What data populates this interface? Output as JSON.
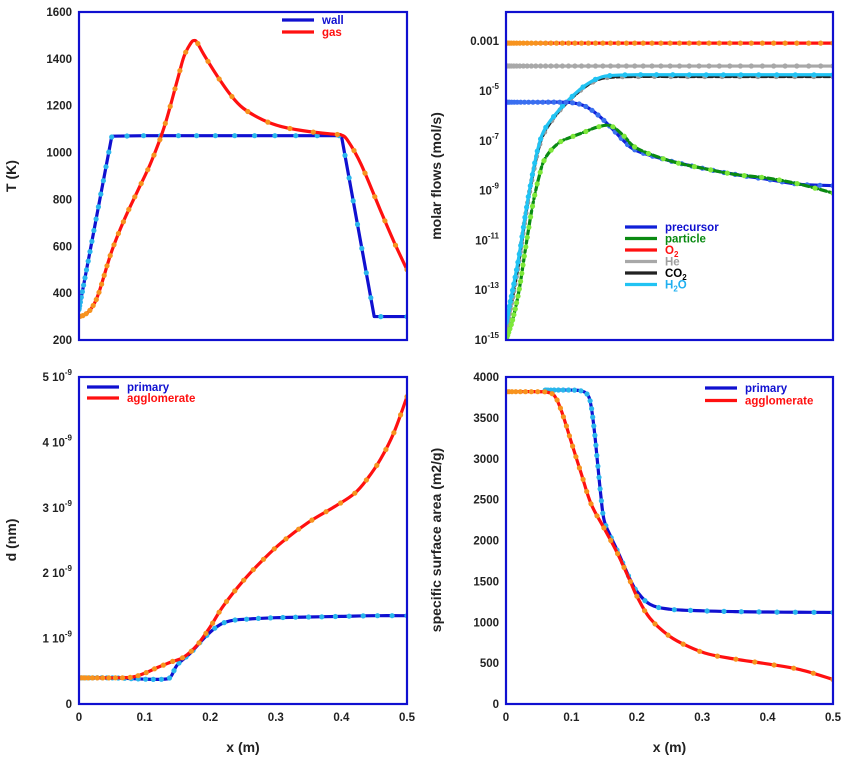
{
  "figure_title": "",
  "colors": {
    "frame": "#1010d0",
    "marker_warm": "#f7931e",
    "marker_cool": "#29b6ec",
    "marker_green": "#7ee83a",
    "marker_gray": "#9a9a9a",
    "marker_blue": "#3a6ff0"
  },
  "chart_data": [
    {
      "id": "temperature",
      "type": "line",
      "title": "",
      "xlabel": "",
      "ylabel": "T (K)",
      "xlim": [
        0,
        0.5
      ],
      "ylim": [
        200,
        1600
      ],
      "yscale": "linear",
      "x_ticks": [],
      "y_ticks": [
        "200",
        "400",
        "600",
        "800",
        "1000",
        "1200",
        "1400",
        "1600"
      ],
      "y_tick_values": [
        200,
        400,
        600,
        800,
        1000,
        1200,
        1400,
        1600
      ],
      "legend": {
        "placement": "top-right",
        "entries": [
          "wall",
          "gas"
        ]
      },
      "series": [
        {
          "name": "wall",
          "color": "#1010d0",
          "marker": "#29b6ec",
          "label_color": "#1010d0",
          "x": [
            0,
            0.05,
            0.1,
            0.15,
            0.2,
            0.25,
            0.3,
            0.35,
            0.4,
            0.45,
            0.5
          ],
          "y": [
            330,
            1070,
            1072,
            1072,
            1072,
            1072,
            1072,
            1072,
            1072,
            300,
            300
          ]
        },
        {
          "name": "gas",
          "color": "#ff1010",
          "marker": "#f7931e",
          "label_color": "#ff1010",
          "x": [
            0,
            0.01,
            0.02,
            0.03,
            0.05,
            0.07,
            0.09,
            0.11,
            0.13,
            0.15,
            0.16,
            0.17,
            0.175,
            0.18,
            0.19,
            0.21,
            0.23,
            0.25,
            0.28,
            0.31,
            0.35,
            0.39,
            0.4,
            0.41,
            0.43,
            0.46,
            0.48,
            0.5
          ],
          "y": [
            300,
            310,
            340,
            400,
            580,
            720,
            840,
            960,
            1110,
            1310,
            1410,
            1465,
            1478,
            1470,
            1420,
            1330,
            1250,
            1190,
            1140,
            1110,
            1090,
            1078,
            1075,
            1050,
            950,
            750,
            620,
            500
          ]
        }
      ]
    },
    {
      "id": "molar_flows",
      "type": "line",
      "title": "",
      "xlabel": "",
      "ylabel": "molar flows (mol/s)",
      "xlim": [
        0,
        0.5
      ],
      "ylim_log10": [
        -15,
        -1.83
      ],
      "yscale": "log",
      "x_ticks": [],
      "y_ticks": [
        "10^-15",
        "10^-13",
        "10^-11",
        "10^-9",
        "10^-7",
        "10^-5",
        "0.001"
      ],
      "y_tick_values_log10": [
        -15,
        -13,
        -11,
        -9,
        -7,
        -5,
        -3
      ],
      "legend": {
        "placement": "center-right",
        "entries": [
          "precursor",
          "particle",
          "O2",
          "He",
          "CO2",
          "H2O"
        ]
      },
      "series": [
        {
          "name": "O2",
          "label_main": "O",
          "label_sub": "2",
          "color": "#ff1010",
          "marker": "#f7931e",
          "label_color": "#ff1010",
          "x": [
            0,
            0.5
          ],
          "log10y": [
            -3.08,
            -3.08
          ]
        },
        {
          "name": "He",
          "label_main": "He",
          "label_sub": "",
          "color": "#a8a8a8",
          "marker": "#a8a8a8",
          "label_color": "#a0a0a0",
          "x": [
            0,
            0.5
          ],
          "log10y": [
            -4.0,
            -4.0
          ]
        },
        {
          "name": "CO2",
          "label_main": "CO",
          "label_sub": "2",
          "color": "#222222",
          "marker": "#9a9a9a",
          "label_color": "#000000",
          "x": [
            0,
            0.01,
            0.02,
            0.03,
            0.04,
            0.05,
            0.06,
            0.08,
            0.1,
            0.12,
            0.14,
            0.16,
            0.2,
            0.3,
            0.5
          ],
          "log10y": [
            -14.6,
            -13.3,
            -11.8,
            -10.0,
            -8.5,
            -7.3,
            -6.6,
            -5.85,
            -5.3,
            -4.85,
            -4.55,
            -4.45,
            -4.42,
            -4.42,
            -4.42
          ]
        },
        {
          "name": "H2O",
          "label_main": "H",
          "label_sub": "2",
          "label_tail": "O",
          "color": "#21c3f3",
          "marker": "#21c3f3",
          "label_color": "#21b0f0",
          "x": [
            0,
            0.01,
            0.02,
            0.03,
            0.04,
            0.05,
            0.06,
            0.08,
            0.1,
            0.12,
            0.14,
            0.16,
            0.2,
            0.3,
            0.5
          ],
          "log10y": [
            -14.3,
            -13.0,
            -11.6,
            -9.9,
            -8.4,
            -7.2,
            -6.5,
            -5.8,
            -5.25,
            -4.8,
            -4.5,
            -4.38,
            -4.35,
            -4.35,
            -4.35
          ]
        },
        {
          "name": "precursor",
          "label_main": "precursor",
          "label_sub": "",
          "color": "#1020d8",
          "marker": "#3a6ff0",
          "label_color": "#1010d0",
          "x": [
            0,
            0.05,
            0.08,
            0.1,
            0.12,
            0.14,
            0.16,
            0.18,
            0.2,
            0.25,
            0.3,
            0.35,
            0.4,
            0.45,
            0.5
          ],
          "log10y": [
            -5.45,
            -5.45,
            -5.45,
            -5.47,
            -5.6,
            -5.95,
            -6.45,
            -7.0,
            -7.4,
            -7.8,
            -8.1,
            -8.35,
            -8.55,
            -8.75,
            -8.8
          ]
        },
        {
          "name": "particle",
          "label_main": "particle",
          "label_sub": "",
          "color": "#0a8a12",
          "marker": "#7ee83a",
          "label_color": "#0a8a12",
          "x": [
            0,
            0.01,
            0.02,
            0.03,
            0.04,
            0.05,
            0.06,
            0.08,
            0.1,
            0.12,
            0.14,
            0.16,
            0.18,
            0.2,
            0.25,
            0.3,
            0.35,
            0.4,
            0.45,
            0.5
          ],
          "log10y": [
            -15.0,
            -14.2,
            -13.0,
            -11.3,
            -9.7,
            -8.5,
            -7.7,
            -7.1,
            -6.85,
            -6.65,
            -6.45,
            -6.4,
            -6.8,
            -7.3,
            -7.8,
            -8.1,
            -8.35,
            -8.5,
            -8.75,
            -9.1
          ]
        }
      ]
    },
    {
      "id": "diameter",
      "type": "line",
      "title": "",
      "xlabel": "x (m)",
      "ylabel": "d (nm)",
      "xlim": [
        0,
        0.5
      ],
      "ylim": [
        0,
        5e-09
      ],
      "yscale": "linear",
      "x_ticks": [
        "0",
        "0.1",
        "0.2",
        "0.3",
        "0.4",
        "0.5"
      ],
      "x_tick_values": [
        0,
        0.1,
        0.2,
        0.3,
        0.4,
        0.5
      ],
      "y_ticks": [
        "0",
        "1 10^-9",
        "2 10^-9",
        "3 10^-9",
        "4 10^-9",
        "5 10^-9"
      ],
      "y_tick_values": [
        0,
        1e-09,
        2e-09,
        3e-09,
        4e-09,
        5e-09
      ],
      "legend": {
        "placement": "top-left",
        "entries": [
          "primary",
          "agglomerate"
        ]
      },
      "series": [
        {
          "name": "primary",
          "color": "#1010d0",
          "marker": "#29b6ec",
          "label_color": "#1010d0",
          "x": [
            0,
            0.05,
            0.1,
            0.13,
            0.14,
            0.15,
            0.17,
            0.19,
            0.21,
            0.23,
            0.26,
            0.3,
            0.35,
            0.4,
            0.45,
            0.5
          ],
          "y": [
            4e-10,
            4e-10,
            3.8e-10,
            3.8e-10,
            4.2e-10,
            6e-10,
            7.8e-10,
            1e-09,
            1.18e-09,
            1.27e-09,
            1.3e-09,
            1.32e-09,
            1.33e-09,
            1.34e-09,
            1.35e-09,
            1.35e-09
          ]
        },
        {
          "name": "agglomerate",
          "color": "#ff1010",
          "marker": "#f7931e",
          "label_color": "#ff1010",
          "x": [
            0,
            0.05,
            0.08,
            0.1,
            0.12,
            0.14,
            0.16,
            0.18,
            0.2,
            0.22,
            0.25,
            0.28,
            0.31,
            0.35,
            0.39,
            0.42,
            0.44,
            0.46,
            0.48,
            0.5
          ],
          "y": [
            4e-10,
            4e-10,
            4.1e-10,
            4.7e-10,
            5.6e-10,
            6.4e-10,
            7.2e-10,
            9e-10,
            1.18e-09,
            1.5e-09,
            1.88e-09,
            2.2e-09,
            2.48e-09,
            2.78e-09,
            3.02e-09,
            3.22e-09,
            3.45e-09,
            3.75e-09,
            4.15e-09,
            4.7e-09
          ]
        }
      ]
    },
    {
      "id": "specific_surface_area",
      "type": "line",
      "title": "",
      "xlabel": "x (m)",
      "ylabel": "specific surface area (m2/g)",
      "xlim": [
        0,
        0.5
      ],
      "ylim": [
        0,
        4000
      ],
      "yscale": "linear",
      "x_ticks": [
        "0",
        "0.1",
        "0.2",
        "0.3",
        "0.4",
        "0.5"
      ],
      "x_tick_values": [
        0,
        0.1,
        0.2,
        0.3,
        0.4,
        0.5
      ],
      "y_ticks": [
        "0",
        "500",
        "1000",
        "1500",
        "2000",
        "2500",
        "3000",
        "3500",
        "4000"
      ],
      "y_tick_values": [
        0,
        500,
        1000,
        1500,
        2000,
        2500,
        3000,
        3500,
        4000
      ],
      "legend": {
        "placement": "top-right",
        "entries": [
          "primary",
          "agglomerate"
        ]
      },
      "series": [
        {
          "name": "primary",
          "color": "#1010d0",
          "marker": "#29b6ec",
          "label_color": "#1010d0",
          "x": [
            0.06,
            0.1,
            0.115,
            0.125,
            0.13,
            0.135,
            0.14,
            0.145,
            0.15,
            0.16,
            0.17,
            0.18,
            0.19,
            0.2,
            0.22,
            0.25,
            0.3,
            0.35,
            0.4,
            0.45,
            0.5
          ],
          "y": [
            3840,
            3840,
            3830,
            3780,
            3650,
            3350,
            2950,
            2550,
            2250,
            2050,
            1880,
            1700,
            1520,
            1380,
            1220,
            1160,
            1140,
            1130,
            1125,
            1122,
            1120
          ]
        },
        {
          "name": "agglomerate",
          "color": "#ff1010",
          "marker": "#f7931e",
          "label_color": "#ff1010",
          "x": [
            0,
            0.05,
            0.065,
            0.075,
            0.085,
            0.1,
            0.115,
            0.13,
            0.15,
            0.17,
            0.19,
            0.2,
            0.22,
            0.25,
            0.28,
            0.31,
            0.35,
            0.4,
            0.45,
            0.5
          ],
          "y": [
            3820,
            3820,
            3810,
            3760,
            3580,
            3200,
            2820,
            2450,
            2150,
            1850,
            1500,
            1320,
            1050,
            830,
            700,
            610,
            550,
            490,
            420,
            300
          ]
        }
      ]
    }
  ]
}
